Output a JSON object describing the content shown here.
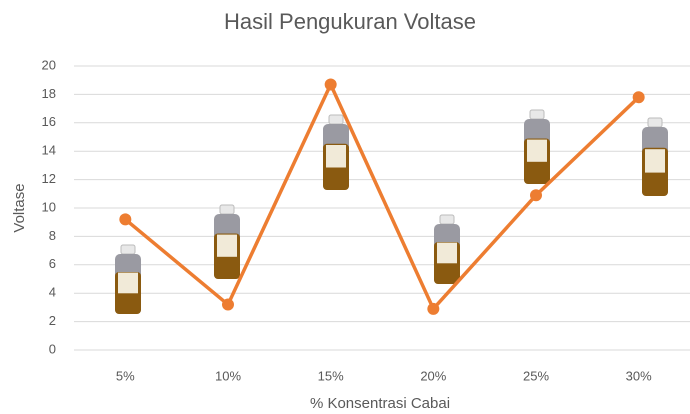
{
  "chart_data": {
    "type": "line",
    "title": "Hasil Pengukuran Voltase",
    "x_label": "% Konsentrasi Cabai",
    "y_label": "Voltase",
    "categories": [
      "5%",
      "10%",
      "15%",
      "20%",
      "25%",
      "30%"
    ],
    "values": [
      9.2,
      3.2,
      18.7,
      2.9,
      10.9,
      17.8
    ],
    "color": "#ED7D31",
    "ylim": [
      0,
      20
    ],
    "yticks": [
      0,
      2,
      4,
      6,
      8,
      10,
      12,
      14,
      16,
      18,
      20
    ],
    "grid": true
  }
}
